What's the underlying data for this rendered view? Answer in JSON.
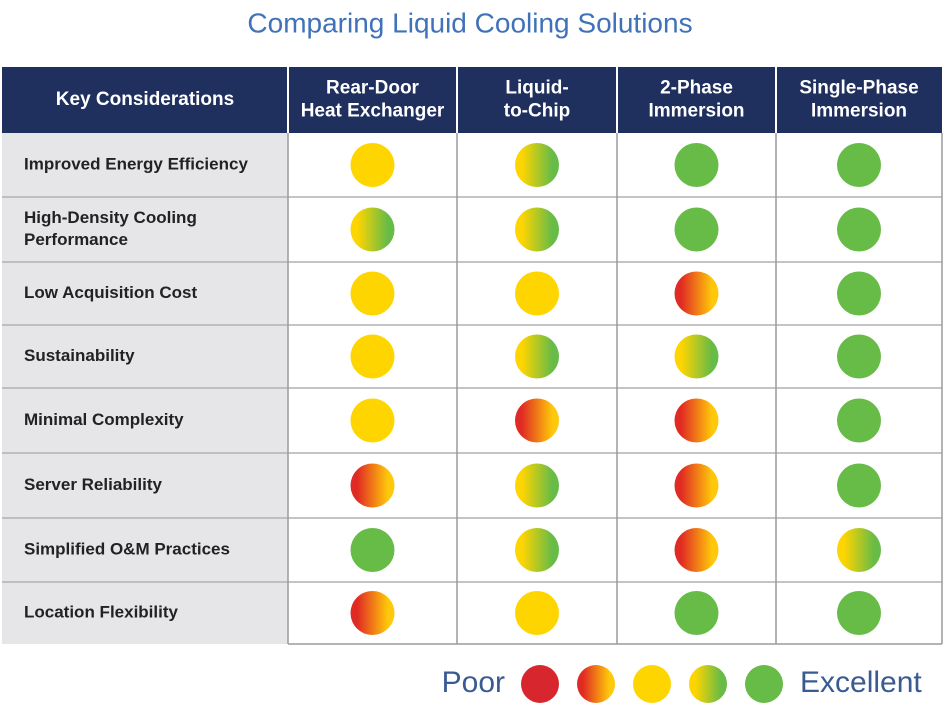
{
  "header": {
    "title": "Comparing Liquid Cooling Solutions"
  },
  "table": {
    "columns": [
      [
        "Key Considerations"
      ],
      [
        "Rear-Door",
        "Heat Exchanger"
      ],
      [
        "Liquid-",
        "to-Chip"
      ],
      [
        "2-Phase",
        "Immersion"
      ],
      [
        "Single-Phase",
        "Immersion"
      ]
    ],
    "rows": [
      {
        "label": [
          "Improved Energy Efficiency"
        ],
        "ratings": [
          3,
          4,
          5,
          5
        ]
      },
      {
        "label": [
          "High-Density Cooling",
          "Performance"
        ],
        "ratings": [
          4,
          4,
          5,
          5
        ]
      },
      {
        "label": [
          "Low Acquisition Cost"
        ],
        "ratings": [
          3,
          3,
          2,
          5
        ]
      },
      {
        "label": [
          "Sustainability"
        ],
        "ratings": [
          3,
          4,
          4,
          5
        ]
      },
      {
        "label": [
          "Minimal Complexity"
        ],
        "ratings": [
          3,
          2,
          2,
          5
        ]
      },
      {
        "label": [
          "Server Reliability"
        ],
        "ratings": [
          2,
          4,
          2,
          5
        ]
      },
      {
        "label": [
          "Simplified O&M Practices"
        ],
        "ratings": [
          5,
          4,
          2,
          4
        ]
      },
      {
        "label": [
          "Location Flexibility"
        ],
        "ratings": [
          2,
          3,
          5,
          5
        ]
      }
    ]
  },
  "legend": {
    "low_label": "Poor",
    "high_label": "Excellent",
    "levels": [
      1,
      2,
      3,
      4,
      5
    ],
    "colors": [
      [
        "#d7262d",
        "#d7262d"
      ],
      [
        "#e02a24",
        "#ffc80a"
      ],
      [
        "#ffd500",
        "#ffd500"
      ],
      [
        "#ffd500",
        "#67bb47"
      ],
      [
        "#67bb47",
        "#67bb47"
      ]
    ]
  }
}
